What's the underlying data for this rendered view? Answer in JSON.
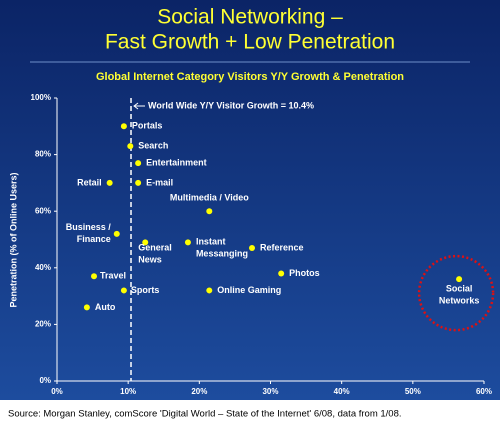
{
  "chart_data": {
    "type": "scatter",
    "title": [
      "Social Networking –",
      "Fast Growth + Low Penetration"
    ],
    "subtitle": "Global Internet Category Visitors Y/Y Growth & Penetration",
    "y_label": "Penetration (% of Online Users)",
    "x": [
      9.4,
      10.3,
      11.4,
      11.4,
      7.4,
      21.4,
      8.4,
      12.4,
      18.4,
      27.4,
      31.5,
      5.2,
      9.4,
      21.4,
      4.2,
      56.5
    ],
    "values": [
      90,
      83,
      77,
      70,
      70,
      60,
      52,
      49,
      49,
      47,
      38,
      37,
      32,
      32,
      26,
      36
    ],
    "point_labels": [
      [
        "Portals"
      ],
      [
        "Search"
      ],
      [
        "Entertainment"
      ],
      [
        "E-mail"
      ],
      [
        "Retail"
      ],
      [
        "Multimedia / Video"
      ],
      [
        "Business /",
        "Finance"
      ],
      [
        "General",
        "News"
      ],
      [
        "Instant",
        "Messanging"
      ],
      [
        "Reference"
      ],
      [
        "Photos"
      ],
      [
        "Travel"
      ],
      [
        "Sports"
      ],
      [
        "Online Gaming"
      ],
      [
        "Auto"
      ],
      [
        "Social",
        "Networks"
      ]
    ],
    "color": "#ffff00",
    "xlim": [
      0,
      60
    ],
    "ylim": [
      0,
      100
    ],
    "xticks": [
      {
        "value": 0,
        "label": "0%"
      },
      {
        "value": 10,
        "label": "10%"
      },
      {
        "value": 20,
        "label": "20%"
      },
      {
        "value": 30,
        "label": "30%"
      },
      {
        "value": 40,
        "label": "40%"
      },
      {
        "value": 50,
        "label": "50%"
      },
      {
        "value": 60,
        "label": "60%"
      }
    ],
    "yticks": [
      {
        "value": 0,
        "label": "0%"
      },
      {
        "value": 20,
        "label": "20%"
      },
      {
        "value": 40,
        "label": "40%"
      },
      {
        "value": 60,
        "label": "60%"
      },
      {
        "value": 80,
        "label": "80%"
      },
      {
        "value": 100,
        "label": "100%"
      }
    ],
    "reference_line": {
      "value": 10.4,
      "label": "World Wide Y/Y Visitor Growth = 10.4%"
    },
    "source": "Source: Morgan Stanley, comScore 'Digital World – State of the Internet' 6/08, data from 1/08."
  }
}
